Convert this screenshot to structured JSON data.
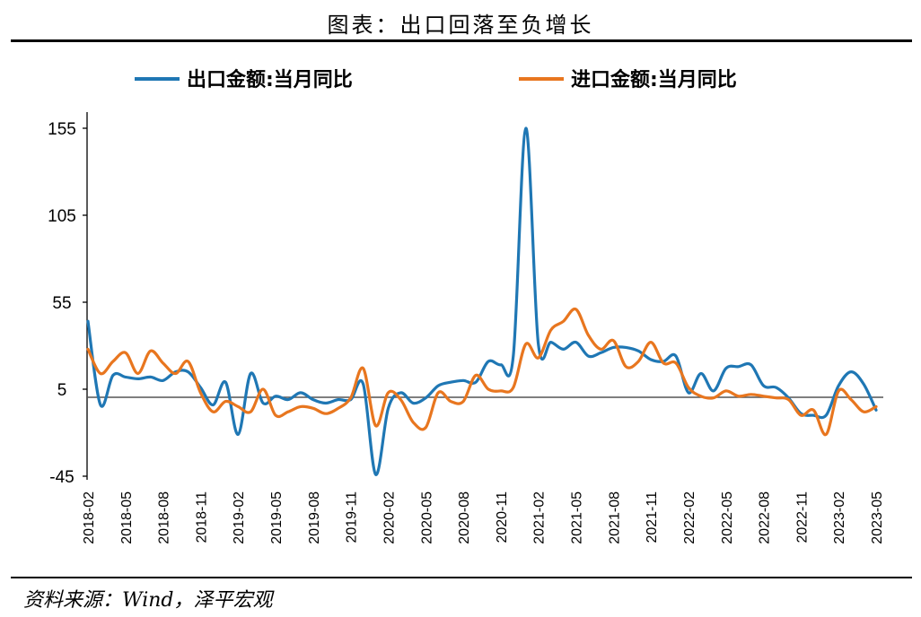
{
  "header": {
    "title": "图表：出口回落至负增长"
  },
  "footer": {
    "source": "资料来源：Wind，泽平宏观"
  },
  "chart_data": {
    "type": "line",
    "title": "图表：出口回落至负增长",
    "xlabel": "",
    "ylabel": "",
    "ylim": [
      -45,
      155
    ],
    "yticks": [
      155,
      105,
      55,
      5,
      -45
    ],
    "grid": false,
    "legend_position": "top",
    "x": [
      "2018-02",
      "2018-03",
      "2018-04",
      "2018-05",
      "2018-06",
      "2018-07",
      "2018-08",
      "2018-09",
      "2018-10",
      "2018-11",
      "2018-12",
      "2019-01",
      "2019-02",
      "2019-03",
      "2019-04",
      "2019-05",
      "2019-06",
      "2019-07",
      "2019-08",
      "2019-09",
      "2019-10",
      "2019-11",
      "2019-12",
      "2020-01",
      "2020-02",
      "2020-03",
      "2020-04",
      "2020-05",
      "2020-06",
      "2020-07",
      "2020-08",
      "2020-09",
      "2020-10",
      "2020-11",
      "2020-12",
      "2021-01",
      "2021-02",
      "2021-03",
      "2021-04",
      "2021-05",
      "2021-06",
      "2021-07",
      "2021-08",
      "2021-09",
      "2021-10",
      "2021-11",
      "2021-12",
      "2022-01",
      "2022-02",
      "2022-03",
      "2022-04",
      "2022-05",
      "2022-06",
      "2022-07",
      "2022-08",
      "2022-09",
      "2022-10",
      "2022-11",
      "2022-12",
      "2023-01",
      "2023-02",
      "2023-03",
      "2023-04",
      "2023-05"
    ],
    "xtick_labels": [
      "2018-02",
      "2018-05",
      "2018-08",
      "2018-11",
      "2019-02",
      "2019-05",
      "2019-08",
      "2019-11",
      "2020-02",
      "2020-05",
      "2020-08",
      "2020-11",
      "2021-02",
      "2021-05",
      "2021-08",
      "2021-11",
      "2022-02",
      "2022-05",
      "2022-08",
      "2022-11",
      "2023-02",
      "2023-05"
    ],
    "series": [
      {
        "name": "出口金额:当月同比",
        "color": "#1f77b4",
        "values": [
          44,
          -4,
          13,
          12,
          11,
          12,
          10,
          15,
          15,
          6,
          -4,
          9,
          -21,
          14,
          -3,
          1,
          -1,
          3,
          -1,
          -3,
          -1,
          -1,
          8,
          -44,
          -6,
          3,
          -3,
          0,
          7,
          9,
          10,
          9,
          21,
          19,
          24,
          155,
          31,
          32,
          28,
          32,
          24,
          26,
          29,
          29,
          27,
          22,
          21,
          24,
          3,
          14,
          4,
          17,
          18,
          19,
          7,
          6,
          0,
          -9,
          -10,
          -10,
          7,
          15,
          8,
          -7
        ]
      },
      {
        "name": "进口金额:当月同比",
        "color": "#e8761f",
        "values": [
          28,
          14,
          21,
          26,
          14,
          27,
          20,
          14,
          21,
          3,
          -8,
          -2,
          -5,
          -8,
          5,
          -10,
          -8,
          -5,
          -6,
          -9,
          -6,
          0,
          17,
          -16,
          3,
          -1,
          -14,
          -17,
          3,
          -2,
          -2,
          13,
          5,
          4,
          6,
          31,
          23,
          39,
          44,
          51,
          36,
          28,
          33,
          18,
          21,
          32,
          20,
          20,
          6,
          1,
          0,
          4,
          1,
          2,
          1,
          0,
          -1,
          -10,
          -7,
          -21,
          4,
          -1,
          -8,
          -5
        ]
      }
    ]
  }
}
